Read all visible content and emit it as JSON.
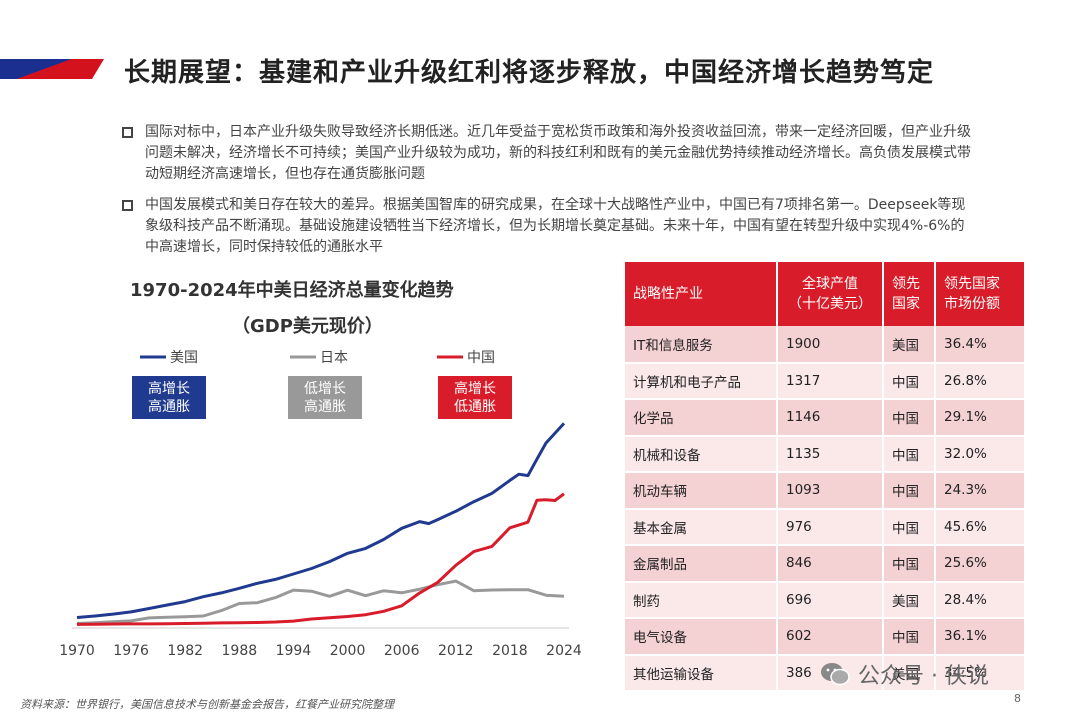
{
  "header": {
    "title": "长期展望：基建和产业升级红利将逐步释放，中国经济增长趋势笃定",
    "accent_colors": [
      "#1a2f8f",
      "#d4121e"
    ]
  },
  "bullets": [
    "国际对标中，日本产业升级失败导致经济长期低迷。近几年受益于宽松货币政策和海外投资收益回流，带来一定经济回暖，但产业升级问题未解决，经济增长不可持续；美国产业升级较为成功，新的科技红利和既有的美元金融优势持续推动经济增长。高负债发展模式带动短期经济高速增长，但也存在通货膨胀问题",
    "中国发展模式和美日存在较大的差异。根据美国智库的研究成果，在全球十大战略性产业中，中国已有7项排名第一。Deepseek等现象级科技产品不断涌现。基础设施建设牺牲当下经济增长，但为长期增长奠定基础。未来十年，中国有望在转型升级中实现4%-6%的中高速增长，同时保持较低的通胀水平"
  ],
  "chart_data": {
    "type": "line",
    "title": "1970-2024年中美日经济总量变化趋势",
    "subtitle": "（GDP美元现价）",
    "x_ticks": [
      "1970",
      "1976",
      "1982",
      "1988",
      "1994",
      "2000",
      "2006",
      "2012",
      "2018",
      "2024"
    ],
    "grid": false,
    "legend_placement": "top",
    "series": [
      {
        "name": "美国",
        "color": "#1f3a8f",
        "badge": [
          "高增长",
          "高通胀"
        ],
        "x": [
          1970,
          1972,
          1974,
          1976,
          1978,
          1980,
          1982,
          1984,
          1986,
          1988,
          1990,
          1992,
          1994,
          1996,
          1998,
          2000,
          2002,
          2004,
          2006,
          2008,
          2009,
          2010,
          2012,
          2014,
          2016,
          2018,
          2019,
          2020,
          2021,
          2022,
          2024
        ],
        "y": [
          1.07,
          1.28,
          1.55,
          1.87,
          2.36,
          2.86,
          3.34,
          4.04,
          4.58,
          5.24,
          5.96,
          6.52,
          7.29,
          8.07,
          9.06,
          10.25,
          10.94,
          12.22,
          13.82,
          14.77,
          14.48,
          15.05,
          16.25,
          17.61,
          18.8,
          20.66,
          21.54,
          21.35,
          23.68,
          26.0,
          28.8
        ]
      },
      {
        "name": "日本",
        "color": "#999999",
        "badge": [
          "低增长",
          "高通胀"
        ],
        "x": [
          1970,
          1972,
          1974,
          1976,
          1978,
          1980,
          1982,
          1984,
          1986,
          1988,
          1990,
          1992,
          1994,
          1996,
          1998,
          2000,
          2002,
          2004,
          2006,
          2008,
          2010,
          2012,
          2014,
          2016,
          2018,
          2020,
          2022,
          2024
        ],
        "y": [
          0.21,
          0.32,
          0.47,
          0.58,
          1.01,
          1.11,
          1.17,
          1.29,
          2.05,
          3.07,
          3.19,
          3.91,
          4.99,
          4.83,
          4.1,
          4.97,
          4.18,
          4.89,
          4.6,
          5.11,
          5.76,
          6.27,
          4.9,
          5.0,
          5.04,
          5.05,
          4.26,
          4.1
        ]
      },
      {
        "name": "中国",
        "color": "#d91c2a",
        "badge": [
          "高增长",
          "低通胀"
        ],
        "x": [
          1970,
          1972,
          1974,
          1976,
          1978,
          1980,
          1982,
          1984,
          1986,
          1988,
          1990,
          1992,
          1994,
          1996,
          1998,
          2000,
          2002,
          2004,
          2006,
          2008,
          2010,
          2012,
          2014,
          2016,
          2018,
          2020,
          2021,
          2022,
          2023,
          2024
        ],
        "y": [
          0.09,
          0.11,
          0.14,
          0.15,
          0.15,
          0.19,
          0.21,
          0.26,
          0.3,
          0.31,
          0.36,
          0.43,
          0.56,
          0.86,
          1.03,
          1.21,
          1.47,
          1.96,
          2.75,
          4.59,
          6.09,
          8.53,
          10.48,
          11.23,
          13.89,
          14.69,
          17.82,
          17.88,
          17.79,
          18.74
        ]
      }
    ],
    "xlim": [
      1970,
      2024
    ],
    "ylim": [
      0,
      30
    ]
  },
  "table": {
    "headers": [
      "战略性产业",
      "全球产值\n（十亿美元）",
      "领先\n国家",
      "领先国家\n市场份额"
    ],
    "rows": [
      [
        "IT和信息服务",
        "1900",
        "美国",
        "36.4%"
      ],
      [
        "计算机和电子产品",
        "1317",
        "中国",
        "26.8%"
      ],
      [
        "化学品",
        "1146",
        "中国",
        "29.1%"
      ],
      [
        "机械和设备",
        "1135",
        "中国",
        "32.0%"
      ],
      [
        "机动车辆",
        "1093",
        "中国",
        "24.3%"
      ],
      [
        "基本金属",
        "976",
        "中国",
        "45.6%"
      ],
      [
        "金属制品",
        "846",
        "中国",
        "25.6%"
      ],
      [
        "制药",
        "696",
        "美国",
        "28.4%"
      ],
      [
        "电气设备",
        "602",
        "中国",
        "36.1%"
      ],
      [
        "其他运输设备",
        "386",
        "美国",
        "34.5%"
      ]
    ],
    "header_color": "#d91c2a"
  },
  "footer": {
    "source": "资料来源：世界银行，美国信息技术与创新基金会报告，红餐产业研究院整理",
    "page": "8",
    "watermark": "公众号 · 侠说"
  }
}
